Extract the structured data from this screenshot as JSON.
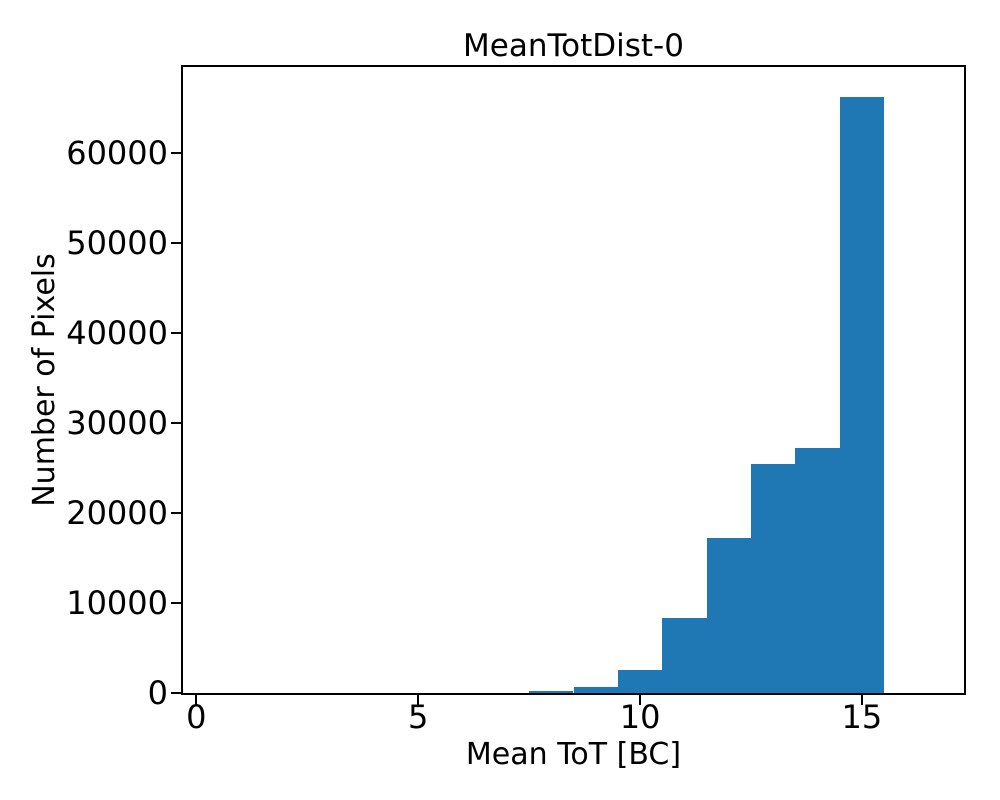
{
  "chart_data": {
    "type": "bar",
    "subtype": "histogram",
    "title": "MeanTotDist-0",
    "xlabel": "Mean ToT [BC]",
    "ylabel": "Number of Pixels",
    "bin_edges": [
      0.5,
      1.5,
      2.5,
      3.5,
      4.5,
      5.5,
      6.5,
      7.5,
      8.5,
      9.5,
      10.5,
      11.5,
      12.5,
      13.5,
      14.5,
      15.5,
      16.5
    ],
    "counts": [
      0,
      0,
      0,
      0,
      0,
      0,
      0,
      250,
      700,
      2550,
      8350,
      17200,
      25500,
      27200,
      66300,
      0
    ],
    "xticks": [
      0,
      5,
      10,
      15
    ],
    "xtick_labels": [
      "0",
      "5",
      "10",
      "15"
    ],
    "yticks": [
      0,
      10000,
      20000,
      30000,
      40000,
      50000,
      60000
    ],
    "ytick_labels": [
      "0",
      "10000",
      "20000",
      "30000",
      "40000",
      "50000",
      "60000"
    ],
    "xlim": [
      -0.3,
      17.3
    ],
    "ylim": [
      0,
      69583
    ],
    "bar_color": "#1f77b4",
    "text_color": "#000000",
    "grid": false,
    "legend": null
  }
}
